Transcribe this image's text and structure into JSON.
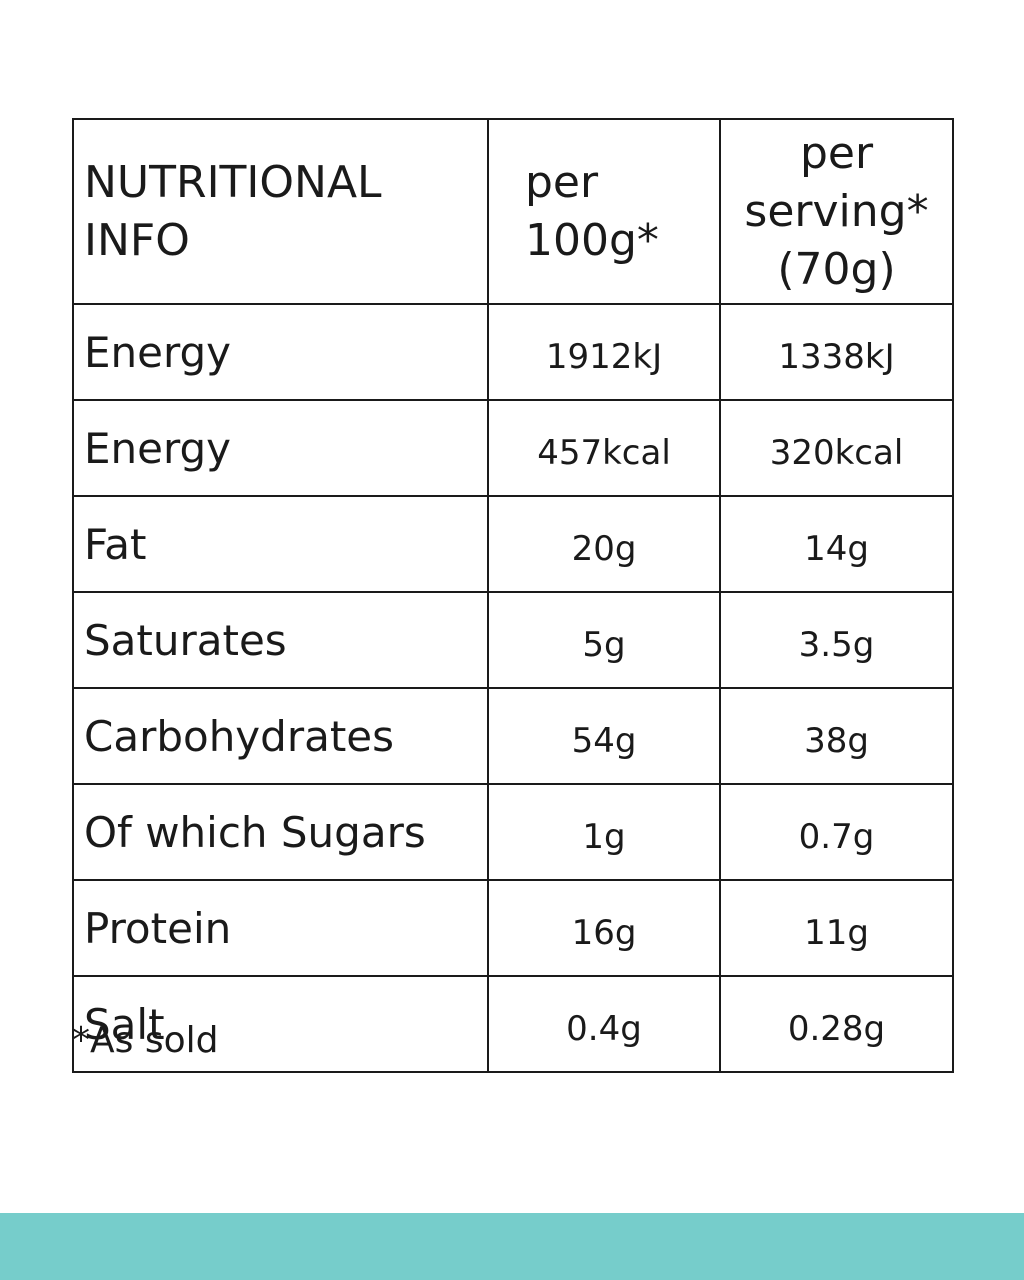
{
  "table": {
    "header": [
      "NUTRITIONAL INFO",
      "per 100g*",
      "per serving* (70g)"
    ],
    "rows": [
      [
        "Energy",
        "1912kJ",
        "1338kJ"
      ],
      [
        "Energy",
        "457kcal",
        "320kcal"
      ],
      [
        "Fat",
        "20g",
        "14g"
      ],
      [
        "Saturates",
        "5g",
        "3.5g"
      ],
      [
        "Carbohydrates",
        "54g",
        "38g"
      ],
      [
        "Of which Sugars",
        "1g",
        "0.7g"
      ],
      [
        "Protein",
        "16g",
        "11g"
      ],
      [
        "Salt",
        "0.4g",
        "0.28g"
      ]
    ]
  },
  "footnote": "*As sold"
}
